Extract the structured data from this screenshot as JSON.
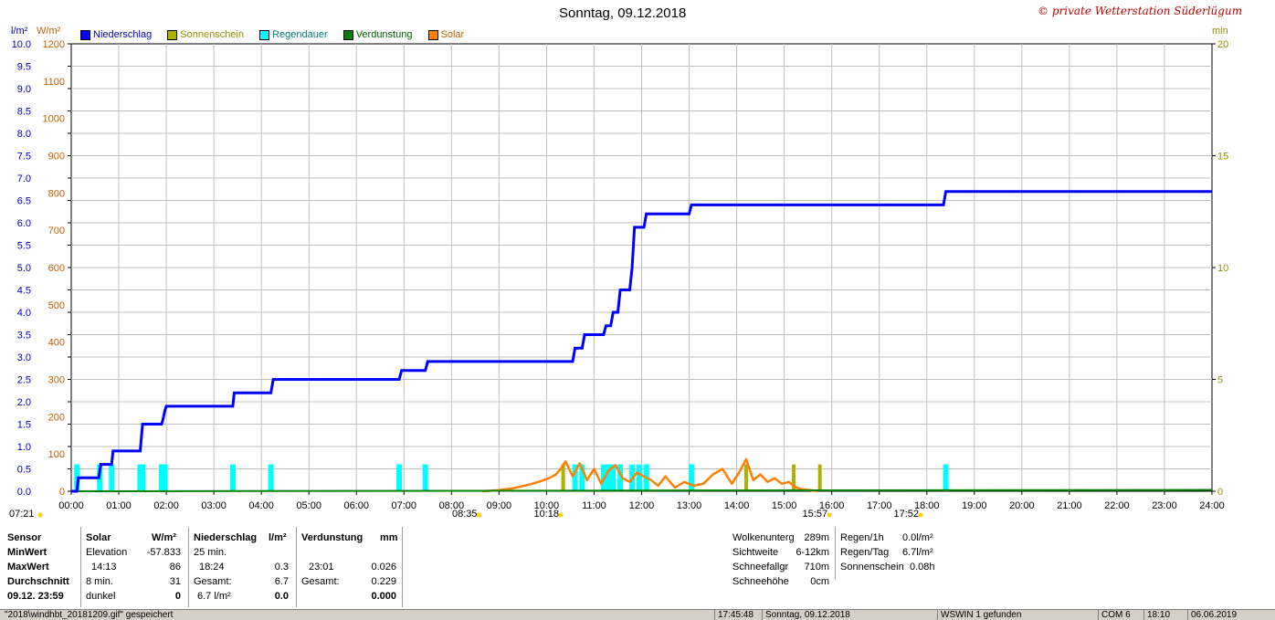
{
  "header": {
    "title": "Sonntag, 09.12.2018",
    "copyright": "© private Wetterstation Süderlügum",
    "unit_left_1": "l/m²",
    "unit_left_2": "W/m²",
    "unit_right": "min"
  },
  "legend": [
    {
      "label": "Niederschlag",
      "color": "#0000ff"
    },
    {
      "label": "Sonnenschein",
      "color": "#b0b000"
    },
    {
      "label": "Regendauer",
      "color": "#00ffff"
    },
    {
      "label": "Verdunstung",
      "color": "#008000"
    },
    {
      "label": "Solar",
      "color": "#ff8000"
    }
  ],
  "chart_data": {
    "type": "line",
    "title": "Sonntag, 09.12.2018",
    "x_ticks": [
      "00:00",
      "01:00",
      "02:00",
      "03:00",
      "04:00",
      "05:00",
      "06:00",
      "07:00",
      "08:00",
      "09:00",
      "10:00",
      "11:00",
      "12:00",
      "13:00",
      "14:00",
      "15:00",
      "16:00",
      "17:00",
      "18:00",
      "19:00",
      "20:00",
      "21:00",
      "22:00",
      "23:00",
      "24:00"
    ],
    "y_left_ticks": [
      "0.0",
      "0.5",
      "1.0",
      "1.5",
      "2.0",
      "2.5",
      "3.0",
      "3.5",
      "4.0",
      "4.5",
      "5.0",
      "5.5",
      "6.0",
      "6.5",
      "7.0",
      "7.5",
      "8.0",
      "8.5",
      "9.0",
      "9.5",
      "10.0"
    ],
    "y_left2_ticks": [
      "0",
      "100",
      "200",
      "300",
      "400",
      "500",
      "600",
      "700",
      "800",
      "900",
      "1000",
      "1100",
      "1200"
    ],
    "y_right_ticks": [
      "0",
      "5",
      "10",
      "15",
      "20"
    ],
    "ylim_niederschlag": [
      0,
      10
    ],
    "ylim_solar": [
      0,
      1200
    ],
    "ylim_minutes": [
      0,
      20
    ],
    "xlim_hours": [
      0,
      24
    ],
    "series": [
      {
        "name": "Niederschlag",
        "color": "#0000ff",
        "x": [
          0,
          0.12,
          0.15,
          0.58,
          0.62,
          0.85,
          0.88,
          1.45,
          1.5,
          1.9,
          1.93,
          1.97,
          2.0,
          3.4,
          3.43,
          4.2,
          4.25,
          6.9,
          6.95,
          7.45,
          7.5,
          10.55,
          10.6,
          10.75,
          10.8,
          11.2,
          11.25,
          11.35,
          11.4,
          11.5,
          11.55,
          11.75,
          11.8,
          11.85,
          11.9,
          12.05,
          12.1,
          13.0,
          13.05,
          18.35,
          18.4,
          24
        ],
        "y": [
          0,
          0,
          0.3,
          0.3,
          0.6,
          0.6,
          0.9,
          0.9,
          1.5,
          1.5,
          1.6,
          1.8,
          1.9,
          1.9,
          2.2,
          2.2,
          2.5,
          2.5,
          2.7,
          2.7,
          2.9,
          2.9,
          3.2,
          3.2,
          3.5,
          3.5,
          3.7,
          3.7,
          4.0,
          4.0,
          4.5,
          4.5,
          5.0,
          5.9,
          5.9,
          5.9,
          6.2,
          6.2,
          6.4,
          6.4,
          6.7,
          6.7
        ]
      },
      {
        "name": "Solar",
        "color": "#ff8000",
        "x": [
          8.65,
          9.0,
          9.3,
          9.5,
          9.7,
          9.9,
          10.05,
          10.2,
          10.3,
          10.4,
          10.55,
          10.7,
          10.85,
          11.0,
          11.15,
          11.3,
          11.45,
          11.6,
          11.75,
          11.9,
          12.05,
          12.2,
          12.35,
          12.5,
          12.7,
          12.9,
          13.1,
          13.3,
          13.5,
          13.7,
          13.9,
          14.05,
          14.2,
          14.35,
          14.5,
          14.65,
          14.8,
          14.95,
          15.1,
          15.25,
          15.4,
          15.55,
          15.7
        ],
        "y": [
          0,
          3,
          8,
          14,
          20,
          28,
          35,
          45,
          60,
          80,
          40,
          75,
          30,
          60,
          20,
          55,
          70,
          35,
          25,
          50,
          40,
          30,
          15,
          40,
          10,
          25,
          15,
          20,
          45,
          60,
          20,
          50,
          86,
          30,
          45,
          25,
          35,
          20,
          25,
          10,
          5,
          3,
          0
        ]
      },
      {
        "name": "Sonnenschein",
        "color": "#b0b000",
        "bars_x": [
          10.35,
          14.2,
          15.2,
          15.75
        ],
        "bars_y": [
          1,
          1,
          1,
          1
        ]
      },
      {
        "name": "Regendauer",
        "color": "#00ffff",
        "bars_x": [
          0.12,
          0.6,
          0.85,
          1.45,
          1.5,
          1.9,
          1.97,
          3.4,
          4.2,
          6.9,
          7.45,
          10.6,
          10.75,
          11.2,
          11.3,
          11.4,
          11.55,
          11.8,
          11.95,
          12.1,
          13.05,
          18.4
        ],
        "bars_y": [
          1,
          1,
          1,
          1,
          1,
          1,
          1,
          1,
          1,
          1,
          1,
          1,
          1,
          1,
          1,
          1,
          1,
          1,
          1,
          1,
          1,
          1
        ]
      },
      {
        "name": "Verdunstung",
        "color": "#008000",
        "x": [
          0,
          24
        ],
        "y": [
          0,
          0.03
        ]
      }
    ],
    "markers": [
      {
        "label": "07:21",
        "x": 7.35
      },
      {
        "label": "08:35",
        "x": 8.58
      },
      {
        "label": "10:18",
        "x": 10.3
      },
      {
        "label": "15:57",
        "x": 15.95
      },
      {
        "label": "17:52",
        "x": 17.87
      }
    ]
  },
  "stats": {
    "col_sensor": [
      "Sensor",
      "MinWert",
      "MaxWert",
      "Durchschnitt",
      "09.12.  23:59"
    ],
    "solar_head": "Solar",
    "solar_unit": "W/m²",
    "solar_rows": [
      [
        "Elevation",
        "-57.833"
      ],
      [
        "14:13",
        "86"
      ],
      [
        "8 min.",
        "31"
      ],
      [
        "dunkel",
        "0"
      ]
    ],
    "rain_head": "Niederschlag",
    "rain_unit": "l/m²",
    "rain_rows": [
      [
        "25 min.",
        ""
      ],
      [
        "18:24",
        "0.3"
      ],
      [
        "Gesamt:",
        "6.7"
      ],
      [
        "6.7 l/m²",
        "0.0"
      ]
    ],
    "evap_head": "Verdunstung",
    "evap_unit": "mm",
    "evap_rows": [
      [
        "",
        ""
      ],
      [
        "23:01",
        "0.026"
      ],
      [
        "Gesamt:",
        "0.229"
      ],
      [
        "",
        "0.000"
      ]
    ],
    "extra_1": [
      [
        "Wolkenunterg",
        "289m"
      ],
      [
        "Sichtweite",
        "6-12km"
      ],
      [
        "Schneefallgr",
        "710m"
      ],
      [
        "Schneehöhe",
        "0cm"
      ]
    ],
    "extra_2": [
      [
        "Regen/1h",
        "0.0l/m²"
      ],
      [
        "Regen/Tag",
        "6.7l/m²"
      ],
      [
        "Sonnenschein",
        "0.08h"
      ]
    ]
  },
  "statusbar": {
    "file": "\"2018\\windhbt_20181209.gif\" gespeichert",
    "time": "17:45:48",
    "date": "Sonntag, 09.12.2018",
    "found": "WSWIN 1 gefunden",
    "com": "COM 6",
    "clock": "18:10",
    "date2": "06.06.2019"
  }
}
